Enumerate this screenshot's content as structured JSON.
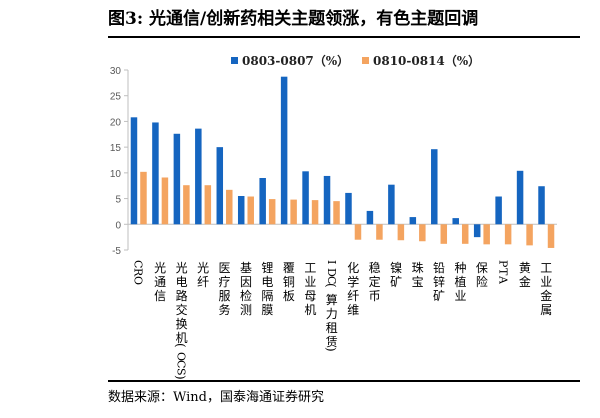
{
  "figure": {
    "title": "图3:  光通信/创新药相关主题领涨，有色主题回调",
    "source": "数据来源：Wind，国泰海通证券研究"
  },
  "chart_data": {
    "type": "bar",
    "title": "",
    "xlabel": "",
    "ylabel": "",
    "ylim": [
      -5,
      30
    ],
    "yticks": [
      -5,
      0,
      5,
      10,
      15,
      20,
      25,
      30
    ],
    "grid": false,
    "legend_position": "top-center",
    "categories": [
      "CRO",
      "光通信",
      "光电路交换机（OCS）",
      "光纤",
      "医疗服务",
      "基因检测",
      "锂电隔膜",
      "覆铜板",
      "工业母机",
      "IDC（算力租赁）",
      "化学纤维",
      "稳定币",
      "镍矿",
      "珠宝",
      "铅锌矿",
      "种植业",
      "保险",
      "PTA",
      "黄金",
      "工业金属"
    ],
    "series": [
      {
        "name": "0803-0807（%）",
        "color": "#1565C0",
        "values": [
          20.8,
          19.8,
          17.6,
          18.6,
          15.0,
          5.5,
          9.0,
          28.7,
          10.3,
          9.4,
          6.1,
          2.6,
          7.7,
          1.4,
          14.6,
          1.2,
          -2.5,
          5.4,
          10.4,
          7.4
        ]
      },
      {
        "name": "0810-0814（%）",
        "color": "#F4A460",
        "values": [
          10.2,
          9.1,
          7.6,
          7.6,
          6.7,
          5.4,
          4.9,
          4.8,
          4.7,
          4.5,
          -3.0,
          -3.0,
          -3.1,
          -3.3,
          -3.8,
          -3.8,
          -3.9,
          -3.9,
          -4.1,
          -4.6
        ]
      }
    ]
  }
}
